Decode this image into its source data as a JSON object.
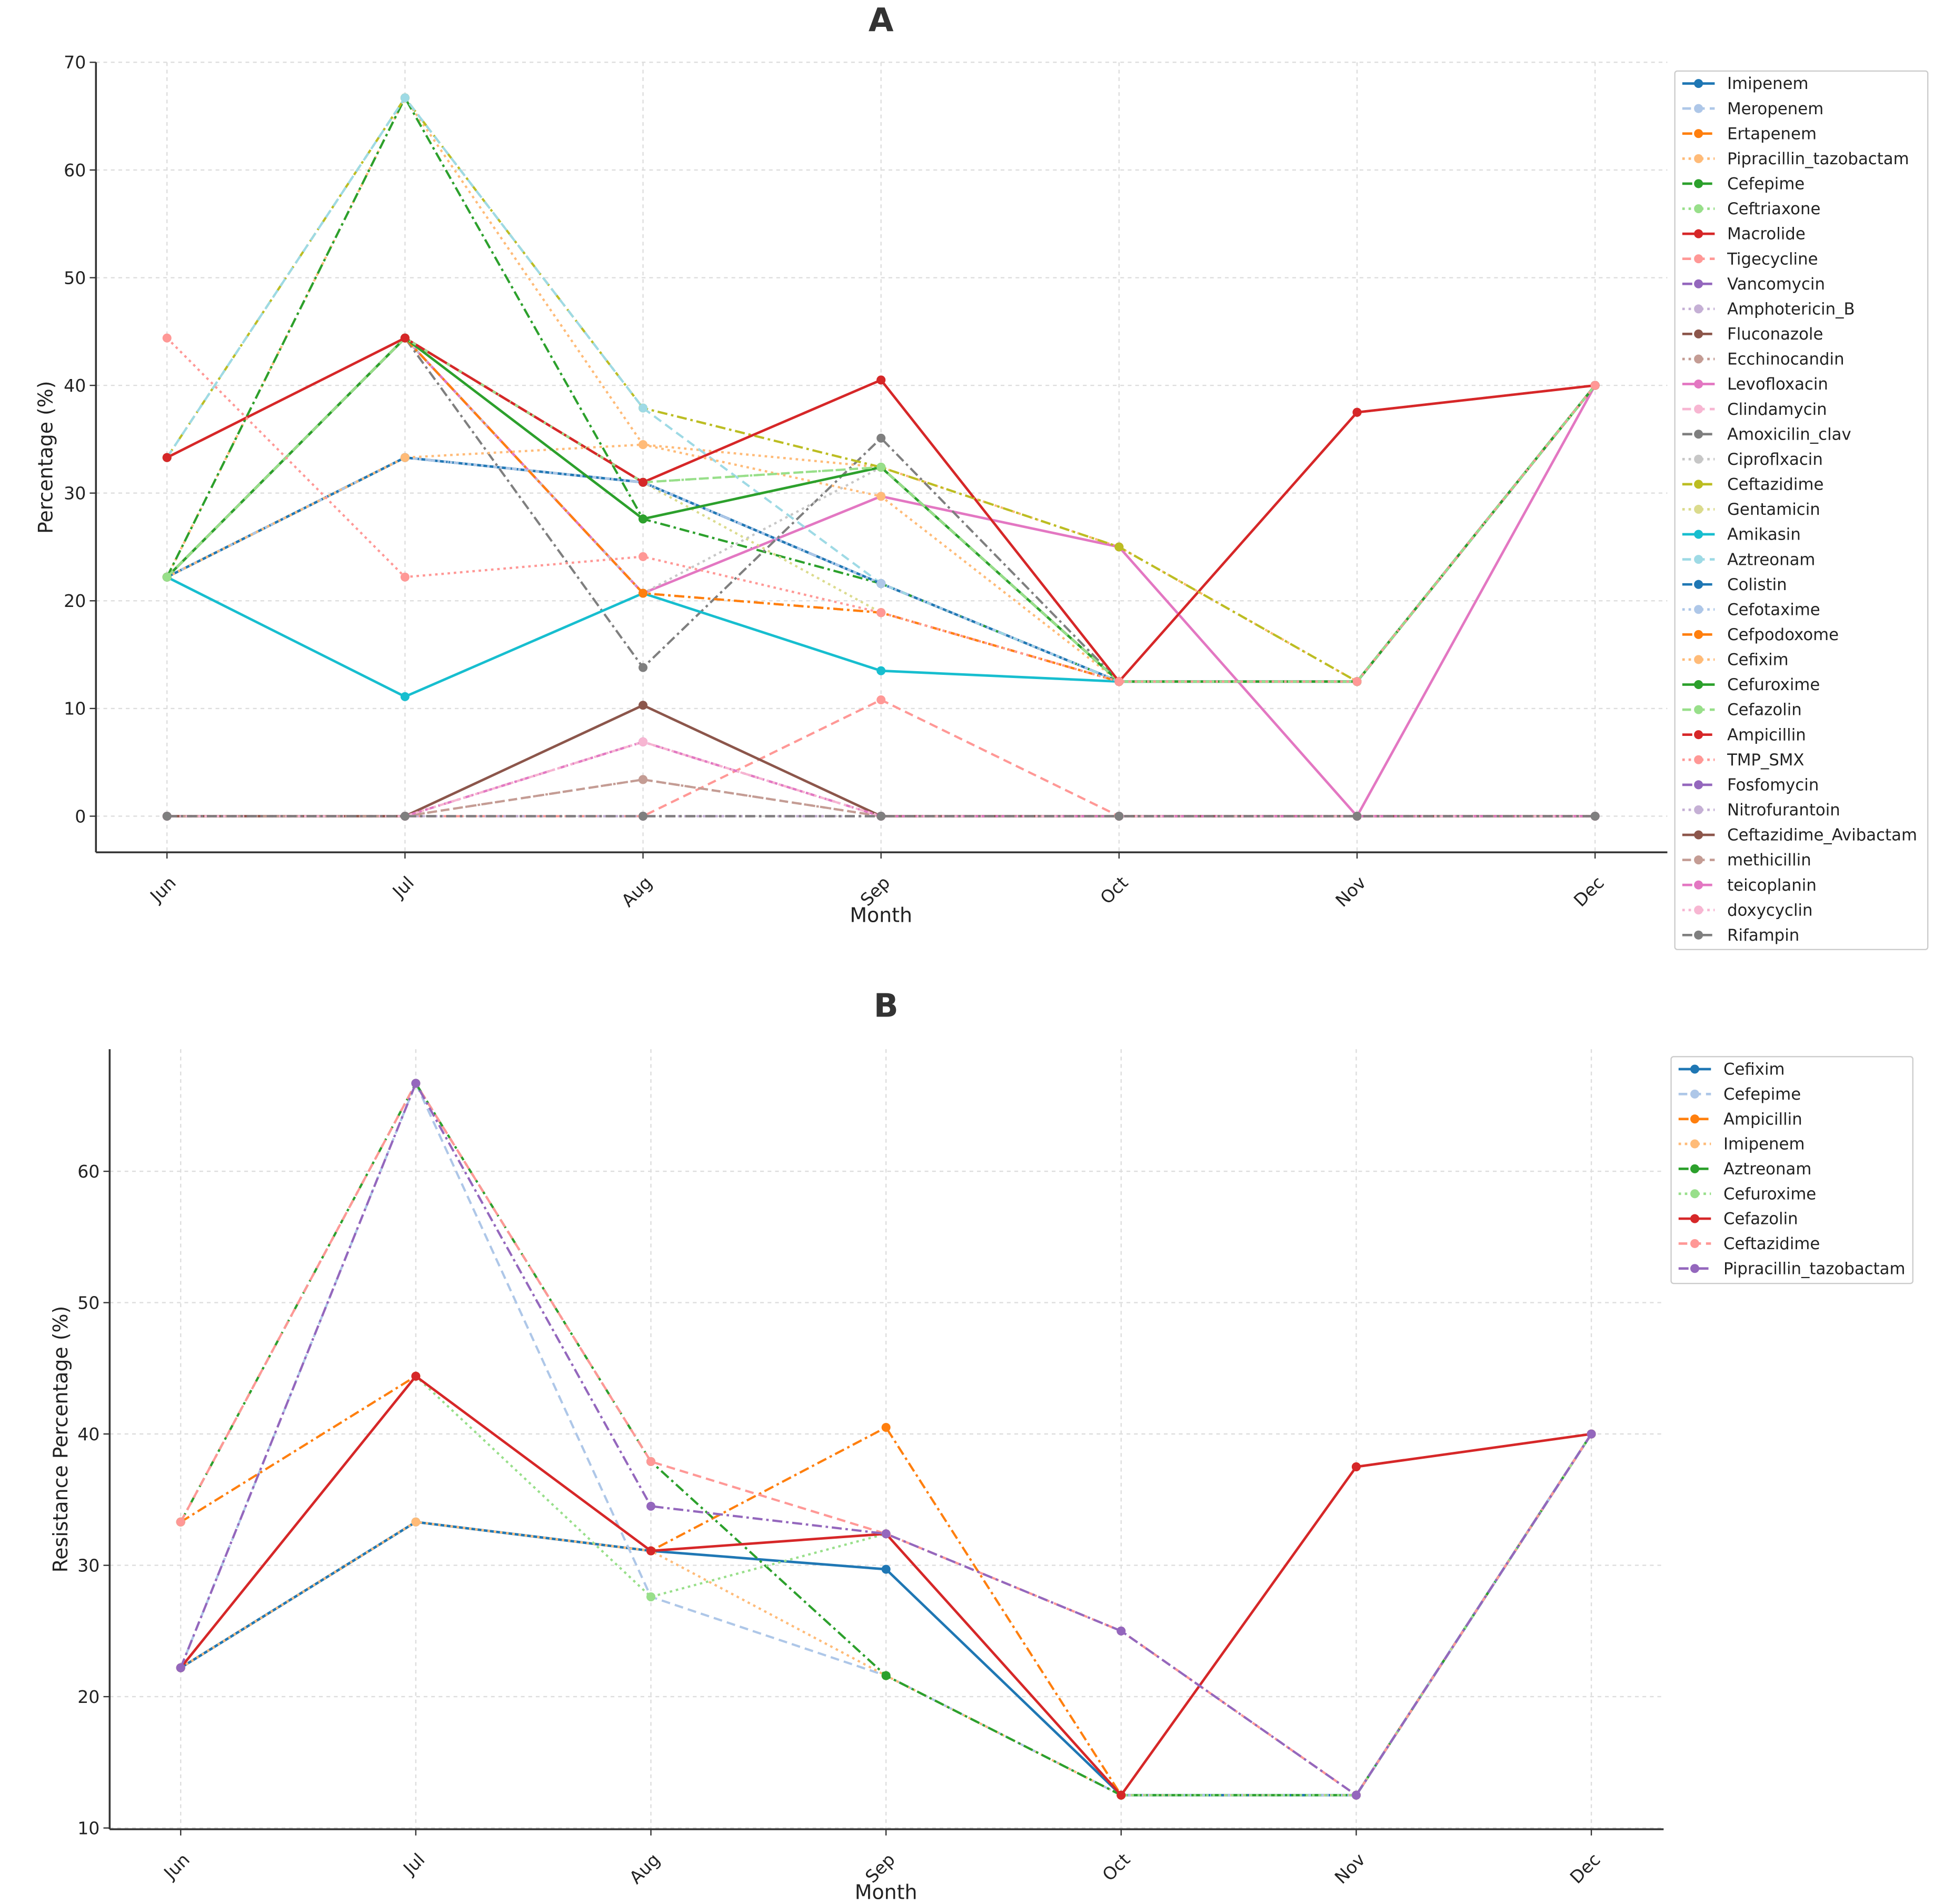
{
  "chart_data": [
    {
      "type": "line",
      "title": "A",
      "xlabel": "Month",
      "ylabel": "Percentage (%)",
      "x": [
        "Jun",
        "Jul",
        "Aug",
        "Sep",
        "Oct",
        "Nov",
        "Dec"
      ],
      "ylim": [
        -3.5,
        70
      ],
      "yticks": [
        0,
        10,
        20,
        30,
        40,
        50,
        60,
        70
      ],
      "grid": true,
      "legend_position": "right",
      "series": [
        {
          "name": "Imipenem",
          "color": "#1f77b4",
          "style": "solid",
          "values": [
            22.2,
            33.3,
            31.0,
            21.6,
            12.5,
            12.5,
            40
          ]
        },
        {
          "name": "Meropenem",
          "color": "#aec7e8",
          "style": "dashed",
          "values": [
            22.2,
            33.3,
            31.0,
            21.6,
            12.5,
            12.5,
            40
          ]
        },
        {
          "name": "Ertapenem",
          "color": "#ff7f0e",
          "style": "dashdot",
          "values": [
            22.2,
            44.4,
            20.7,
            18.9,
            12.5,
            12.5,
            40
          ]
        },
        {
          "name": "Pipracillin_tazobactam",
          "color": "#ffbb78",
          "style": "dotted",
          "values": [
            22.2,
            66.7,
            34.5,
            32.4,
            25,
            12.5,
            40
          ]
        },
        {
          "name": "Cefepime",
          "color": "#2ca02c",
          "style": "dashdot",
          "values": [
            22.2,
            66.7,
            27.6,
            21.6,
            12.5,
            12.5,
            40
          ]
        },
        {
          "name": "Ceftriaxone",
          "color": "#98df8a",
          "style": "dotted",
          "values": [
            22.2,
            44.4,
            31.0,
            32.4,
            12.5,
            12.5,
            40
          ]
        },
        {
          "name": "Macrolide",
          "color": "#d62728",
          "style": "solid",
          "values": [
            33.3,
            44.4,
            31.0,
            40.5,
            12.5,
            37.5,
            40
          ]
        },
        {
          "name": "Tigecycline",
          "color": "#ff9896",
          "style": "dashed",
          "values": [
            0,
            0,
            0,
            10.8,
            0,
            0,
            0
          ]
        },
        {
          "name": "Vancomycin",
          "color": "#9467bd",
          "style": "dashdot",
          "values": [
            0,
            0,
            0,
            0,
            0,
            0,
            0
          ]
        },
        {
          "name": "Amphotericin_B",
          "color": "#c5b0d5",
          "style": "dotted",
          "values": [
            0,
            0,
            0,
            0,
            0,
            0,
            0
          ]
        },
        {
          "name": "Fluconazole",
          "color": "#8c564b",
          "style": "dashdot",
          "values": [
            0,
            0,
            0,
            0,
            0,
            0,
            0
          ]
        },
        {
          "name": "Ecchinocandin",
          "color": "#c49c94",
          "style": "dotted",
          "values": [
            0,
            0,
            3.4,
            0,
            0,
            0,
            0
          ]
        },
        {
          "name": "Levofloxacin",
          "color": "#e377c2",
          "style": "solid",
          "values": [
            22.2,
            44.4,
            20.7,
            29.7,
            25,
            0,
            40
          ]
        },
        {
          "name": "Clindamycin",
          "color": "#f7b6d2",
          "style": "dashed",
          "values": [
            0,
            0,
            6.9,
            0,
            0,
            0,
            0
          ]
        },
        {
          "name": "Amoxicilin_clav",
          "color": "#7f7f7f",
          "style": "dashdot",
          "values": [
            22.2,
            44.4,
            13.8,
            35.1,
            12.5,
            12.5,
            40
          ]
        },
        {
          "name": "Ciproflxacin",
          "color": "#c7c7c7",
          "style": "dotted",
          "values": [
            22.2,
            44.4,
            20.7,
            32.4,
            12.5,
            12.5,
            40
          ]
        },
        {
          "name": "Ceftazidime",
          "color": "#bcbd22",
          "style": "dashdot",
          "values": [
            33.3,
            66.7,
            37.9,
            32.4,
            25,
            12.5,
            40
          ]
        },
        {
          "name": "Gentamicin",
          "color": "#dbdb8d",
          "style": "dotted",
          "values": [
            22.2,
            33.3,
            31.0,
            18.9,
            12.5,
            12.5,
            40
          ]
        },
        {
          "name": "Amikasin",
          "color": "#17becf",
          "style": "solid",
          "values": [
            22.2,
            11.1,
            20.7,
            13.5,
            12.5,
            12.5,
            40
          ]
        },
        {
          "name": "Aztreonam",
          "color": "#9edae5",
          "style": "dashed",
          "values": [
            33.3,
            66.7,
            37.9,
            21.6,
            12.5,
            12.5,
            40
          ]
        },
        {
          "name": "Colistin",
          "color": "#1f77b4",
          "style": "dashdot",
          "values": [
            22.2,
            33.3,
            31.0,
            21.6,
            12.5,
            12.5,
            40
          ]
        },
        {
          "name": "Cefotaxime",
          "color": "#aec7e8",
          "style": "dotted",
          "values": [
            22.2,
            33.3,
            31.0,
            21.6,
            12.5,
            12.5,
            40
          ]
        },
        {
          "name": "Cefpodoxome",
          "color": "#ff7f0e",
          "style": "dashdot",
          "values": [
            22.2,
            44.4,
            20.7,
            18.9,
            12.5,
            12.5,
            40
          ]
        },
        {
          "name": "Cefixim",
          "color": "#ffbb78",
          "style": "dotted",
          "values": [
            22.2,
            33.3,
            34.5,
            29.7,
            12.5,
            12.5,
            40
          ]
        },
        {
          "name": "Cefuroxime",
          "color": "#2ca02c",
          "style": "solid",
          "values": [
            22.2,
            44.4,
            27.6,
            32.4,
            12.5,
            12.5,
            40
          ]
        },
        {
          "name": "Cefazolin",
          "color": "#98df8a",
          "style": "dashed",
          "values": [
            22.2,
            44.4,
            31.0,
            32.4,
            12.5,
            12.5,
            40
          ]
        },
        {
          "name": "Ampicillin",
          "color": "#d62728",
          "style": "dashdot",
          "values": [
            33.3,
            44.4,
            31.0,
            40.5,
            12.5,
            37.5,
            40
          ]
        },
        {
          "name": "TMP_SMX",
          "color": "#ff9896",
          "style": "dotted",
          "values": [
            44.4,
            22.2,
            24.1,
            18.9,
            12.5,
            12.5,
            40
          ]
        },
        {
          "name": "Fosfomycin",
          "color": "#9467bd",
          "style": "dashdot",
          "values": [
            0,
            0,
            6.9,
            0,
            0,
            0,
            0
          ]
        },
        {
          "name": "Nitrofurantoin",
          "color": "#c5b0d5",
          "style": "dotted",
          "values": [
            0,
            0,
            0,
            0,
            0,
            0,
            0
          ]
        },
        {
          "name": "Ceftazidime_Avibactam",
          "color": "#8c564b",
          "style": "solid",
          "values": [
            0,
            0,
            10.3,
            0,
            0,
            0,
            0
          ]
        },
        {
          "name": "methicillin",
          "color": "#c49c94",
          "style": "dashed",
          "values": [
            0,
            0,
            3.4,
            0,
            0,
            0,
            0
          ]
        },
        {
          "name": "teicoplanin",
          "color": "#e377c2",
          "style": "dashdot",
          "values": [
            0,
            0,
            6.9,
            0,
            0,
            0,
            0
          ]
        },
        {
          "name": "doxycyclin",
          "color": "#f7b6d2",
          "style": "dotted",
          "values": [
            0,
            0,
            6.9,
            0,
            0,
            0,
            0
          ]
        },
        {
          "name": "Rifampin",
          "color": "#7f7f7f",
          "style": "dashdot",
          "values": [
            0,
            0,
            0,
            0,
            0,
            0,
            0
          ]
        }
      ]
    },
    {
      "type": "line",
      "title": "B",
      "xlabel": "Month",
      "ylabel": "Resistance Percentage (%)",
      "x": [
        "Jun",
        "Jul",
        "Aug",
        "Sep",
        "Oct",
        "Nov",
        "Dec"
      ],
      "ylim": [
        10,
        69.5
      ],
      "yticks": [
        10,
        20,
        30,
        40,
        50,
        60
      ],
      "grid": true,
      "legend_position": "top-right",
      "series": [
        {
          "name": "Cefixim",
          "color": "#1f77b4",
          "style": "solid",
          "values": [
            22.2,
            33.3,
            31.1,
            29.7,
            12.5,
            12.5,
            40
          ]
        },
        {
          "name": "Cefepime",
          "color": "#aec7e8",
          "style": "dashed",
          "values": [
            22.2,
            66.7,
            27.6,
            21.6,
            12.5,
            12.5,
            40
          ]
        },
        {
          "name": "Ampicillin",
          "color": "#ff7f0e",
          "style": "dashdot",
          "values": [
            33.3,
            44.4,
            31.1,
            40.5,
            12.5,
            37.5,
            40
          ]
        },
        {
          "name": "Imipenem",
          "color": "#ffbb78",
          "style": "dotted",
          "values": [
            22.2,
            33.3,
            31.1,
            21.6,
            12.5,
            12.5,
            40
          ]
        },
        {
          "name": "Aztreonam",
          "color": "#2ca02c",
          "style": "dashdot",
          "values": [
            33.3,
            66.7,
            37.9,
            21.6,
            12.5,
            12.5,
            40
          ]
        },
        {
          "name": "Cefuroxime",
          "color": "#98df8a",
          "style": "dotted",
          "values": [
            22.2,
            44.4,
            27.6,
            32.4,
            12.5,
            12.5,
            40
          ]
        },
        {
          "name": "Cefazolin",
          "color": "#d62728",
          "style": "solid",
          "values": [
            22.2,
            44.4,
            31.1,
            32.4,
            12.5,
            37.5,
            40
          ]
        },
        {
          "name": "Ceftazidime",
          "color": "#ff9896",
          "style": "dashed",
          "values": [
            33.3,
            66.7,
            37.9,
            32.4,
            25,
            12.5,
            40
          ]
        },
        {
          "name": "Pipracillin_tazobactam",
          "color": "#9467bd",
          "style": "dashdot",
          "values": [
            22.2,
            66.7,
            34.5,
            32.4,
            25,
            12.5,
            40
          ]
        }
      ]
    }
  ]
}
